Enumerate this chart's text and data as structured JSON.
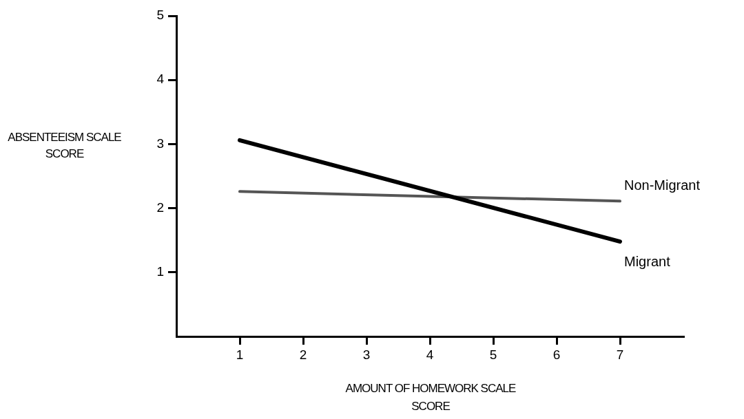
{
  "chart_data": {
    "type": "line",
    "xlabel": "AMOUNT OF HOMEWORK SCALE SCORE",
    "ylabel": "ABSENTEEISM SCALE SCORE",
    "x": [
      1,
      7
    ],
    "series": [
      {
        "name": "Migrant",
        "color": "#000000",
        "values": [
          3.06,
          1.48
        ]
      },
      {
        "name": "Non-Migrant",
        "color": "#555555",
        "values": [
          2.26,
          2.11
        ]
      }
    ],
    "xlim": [
      0,
      8
    ],
    "xticks": [
      1,
      2,
      3,
      4,
      5,
      6,
      7
    ],
    "ylim": [
      0,
      5
    ],
    "yticks": [
      1,
      2,
      3,
      4,
      5
    ],
    "grid": false,
    "legend": false,
    "marker": "none",
    "line_style": "solid"
  }
}
